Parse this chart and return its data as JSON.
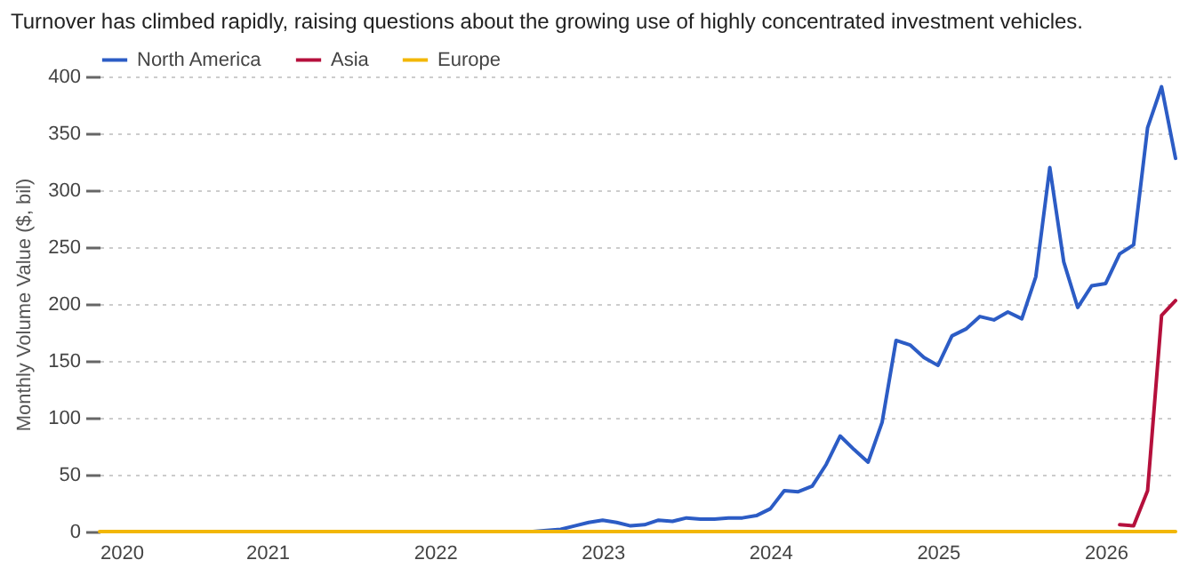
{
  "chart_data": {
    "type": "line",
    "title": "Turnover has climbed rapidly, raising questions about the growing use of highly concentrated investment vehicles.",
    "ylabel": "Monthly Volume Value ($, bil)",
    "x": [
      "2020-01",
      "2020-02",
      "2020-03",
      "2020-04",
      "2020-05",
      "2020-06",
      "2020-07",
      "2020-08",
      "2020-09",
      "2020-10",
      "2020-11",
      "2020-12",
      "2021-01",
      "2021-02",
      "2021-03",
      "2021-04",
      "2021-05",
      "2021-06",
      "2021-07",
      "2021-08",
      "2021-09",
      "2021-10",
      "2021-11",
      "2021-12",
      "2022-01",
      "2022-02",
      "2022-03",
      "2022-04",
      "2022-05",
      "2022-06",
      "2022-07",
      "2022-08",
      "2022-09",
      "2022-10",
      "2022-11",
      "2022-12",
      "2023-01",
      "2023-02",
      "2023-03",
      "2023-04",
      "2023-05",
      "2023-06",
      "2023-07",
      "2023-08",
      "2023-09",
      "2023-10",
      "2023-11",
      "2023-12",
      "2024-01",
      "2024-02",
      "2024-03",
      "2024-04",
      "2024-05",
      "2024-06",
      "2024-07",
      "2024-08",
      "2024-09",
      "2024-10",
      "2024-11",
      "2024-12",
      "2025-01",
      "2025-02",
      "2025-03",
      "2025-04",
      "2025-05",
      "2025-06",
      "2025-07",
      "2025-08",
      "2025-09",
      "2025-10",
      "2025-11",
      "2025-12",
      "2026-01",
      "2026-02",
      "2026-03",
      "2026-04",
      "2026-05",
      "2026-06"
    ],
    "series": [
      {
        "name": "North America",
        "color": "#2c5cc5",
        "values": [
          null,
          null,
          null,
          null,
          null,
          null,
          null,
          null,
          null,
          null,
          null,
          null,
          null,
          null,
          null,
          null,
          null,
          null,
          null,
          null,
          null,
          null,
          null,
          null,
          null,
          null,
          null,
          null,
          null,
          0,
          0,
          0,
          1,
          2,
          5,
          8,
          10,
          8,
          5,
          6,
          10,
          9,
          12,
          11,
          11,
          12,
          12,
          14,
          20,
          36,
          35,
          40,
          59,
          84,
          72,
          61,
          96,
          168,
          164,
          153,
          146,
          172,
          178,
          189,
          186,
          193,
          187,
          224,
          320,
          237,
          197,
          216,
          218,
          244,
          252,
          355,
          391,
          328
        ]
      },
      {
        "name": "Asia",
        "color": "#b5103c",
        "values": [
          null,
          null,
          null,
          null,
          null,
          null,
          null,
          null,
          null,
          null,
          null,
          null,
          null,
          null,
          null,
          null,
          null,
          null,
          null,
          null,
          null,
          null,
          null,
          null,
          null,
          null,
          null,
          null,
          null,
          null,
          null,
          null,
          null,
          null,
          null,
          null,
          null,
          null,
          null,
          null,
          null,
          null,
          null,
          null,
          null,
          null,
          null,
          null,
          null,
          null,
          null,
          null,
          null,
          null,
          null,
          null,
          null,
          null,
          null,
          null,
          null,
          null,
          null,
          null,
          null,
          null,
          null,
          null,
          null,
          null,
          null,
          null,
          null,
          6,
          5,
          36,
          190,
          203
        ]
      },
      {
        "name": "Europe",
        "color": "#f2b705",
        "values": [
          0,
          0,
          0,
          0,
          0,
          0,
          0,
          0,
          0,
          0,
          0,
          0,
          0,
          0,
          0,
          0,
          0,
          0,
          0,
          0,
          0,
          0,
          0,
          0,
          0,
          0,
          0,
          0,
          0,
          0,
          0,
          0,
          0,
          0,
          0,
          0,
          0,
          0,
          0,
          0,
          0,
          0,
          0,
          0,
          0,
          0,
          0,
          0,
          0,
          0,
          0,
          0,
          0,
          0,
          0,
          0,
          0,
          0,
          0,
          0,
          0,
          0,
          0,
          0,
          0,
          0,
          0,
          0,
          0,
          0,
          0,
          0,
          0,
          0,
          0,
          0,
          0,
          0
        ]
      }
    ],
    "xlim": [
      "2020-01",
      "2026-06"
    ],
    "xticks": [
      "2020",
      "2021",
      "2022",
      "2023",
      "2024",
      "2025",
      "2026"
    ],
    "ylim": [
      0,
      400
    ],
    "yticks": [
      0,
      50,
      100,
      150,
      200,
      250,
      300,
      350,
      400
    ],
    "grid": "y",
    "legend": "top left",
    "line_style": "solid",
    "marker": "none"
  }
}
